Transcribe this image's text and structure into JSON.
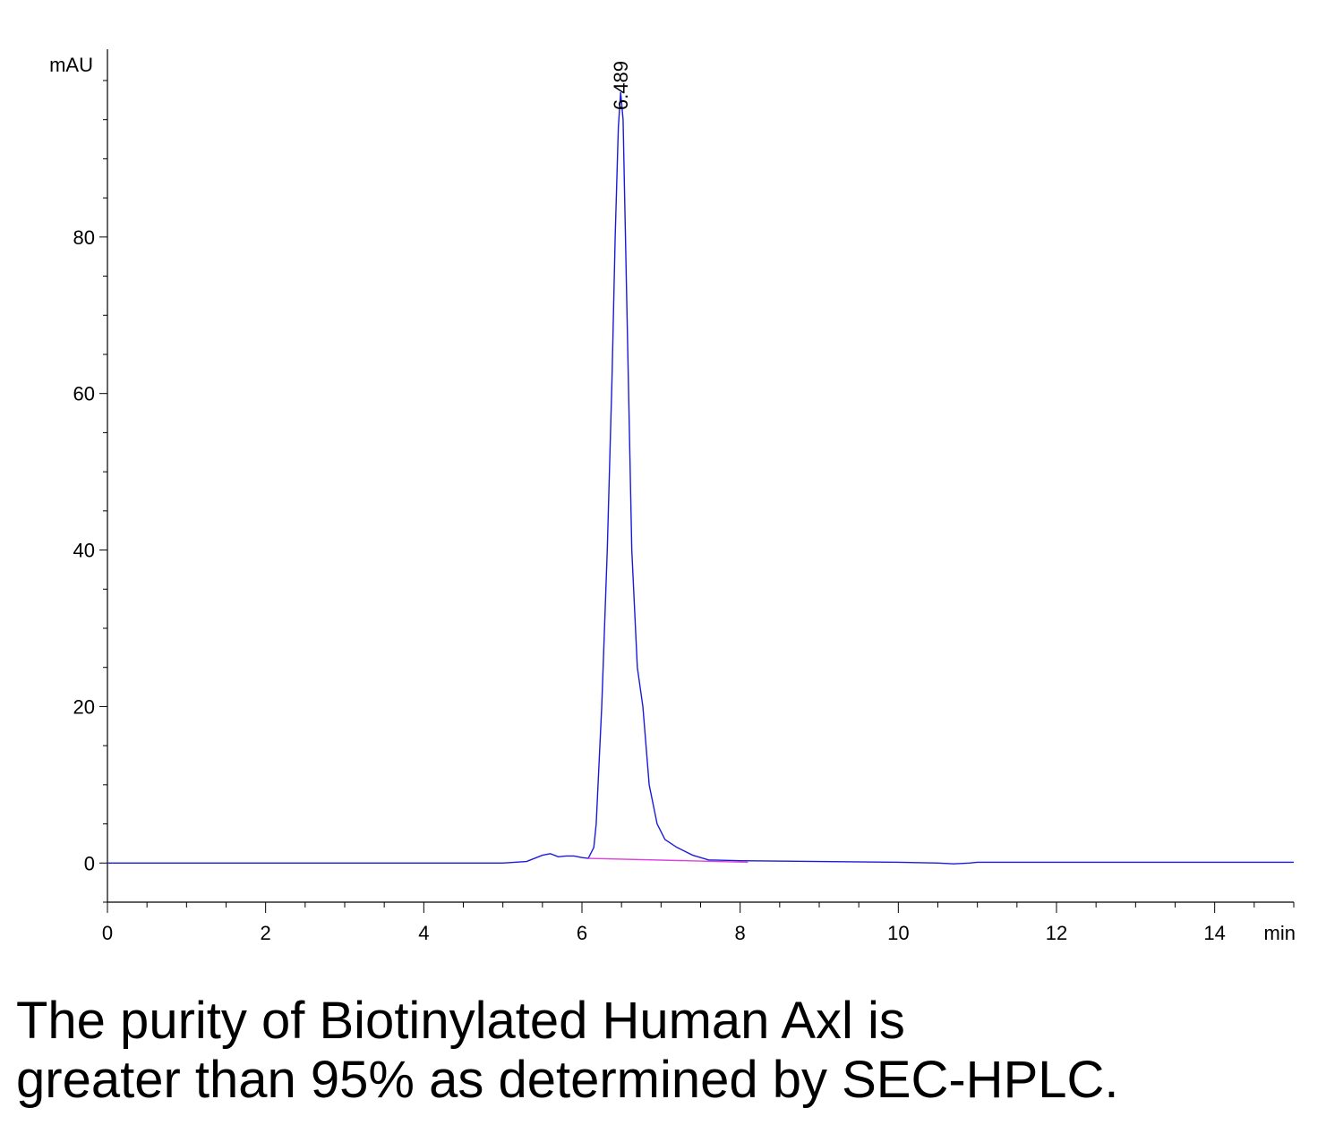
{
  "chart_data": {
    "type": "line",
    "y_unit": "mAU",
    "x_unit": "min",
    "xlim": [
      0,
      15
    ],
    "xticks": [
      0,
      2,
      4,
      6,
      8,
      10,
      12,
      14
    ],
    "xminorticks": [
      0.5,
      1,
      1.5,
      2.5,
      3,
      3.5,
      4.5,
      5,
      5.5,
      6.5,
      7,
      7.5,
      8.5,
      9,
      9.5,
      10.5,
      11,
      11.5,
      12.5,
      13,
      13.5,
      14.5,
      15
    ],
    "ylim": [
      -5,
      104
    ],
    "yticks": [
      0,
      20,
      40,
      60,
      80
    ],
    "yminorticks": [
      -5,
      5,
      10,
      15,
      25,
      30,
      35,
      45,
      50,
      55,
      65,
      70,
      75,
      85,
      90,
      95,
      100
    ],
    "series": [
      {
        "color": "#1a1adc",
        "x": [
          0,
          5,
          5.3,
          5.5,
          5.6,
          5.7,
          5.8,
          5.9,
          6.0,
          6.08,
          6.15,
          6.18,
          6.25,
          6.32,
          6.38,
          6.42,
          6.46,
          6.489,
          6.52,
          6.55,
          6.59,
          6.63,
          6.7,
          6.77,
          6.85,
          6.95,
          7.05,
          7.2,
          7.4,
          7.6,
          8,
          9,
          10,
          10.5,
          10.7,
          10.9,
          11,
          15
        ],
        "values": [
          0,
          0,
          0.2,
          1.0,
          1.2,
          0.8,
          0.9,
          0.9,
          0.7,
          0.6,
          2,
          5,
          20,
          40,
          62,
          80,
          94,
          98.5,
          95,
          80,
          60,
          40,
          25,
          20,
          10,
          5,
          3,
          2,
          1,
          0.4,
          0.3,
          0.2,
          0.1,
          0,
          -0.1,
          0,
          0.1,
          0.1
        ]
      },
      {
        "color": "#e040e0",
        "x": [
          6.08,
          8.1
        ],
        "values": [
          0.6,
          0.1
        ]
      }
    ],
    "annotations": [
      {
        "text": "6.489",
        "x": 6.489,
        "y": 98.5
      }
    ],
    "caption": [
      "The purity of Biotinylated Human Axl is",
      "greater than 95% as determined by SEC-HPLC."
    ]
  }
}
